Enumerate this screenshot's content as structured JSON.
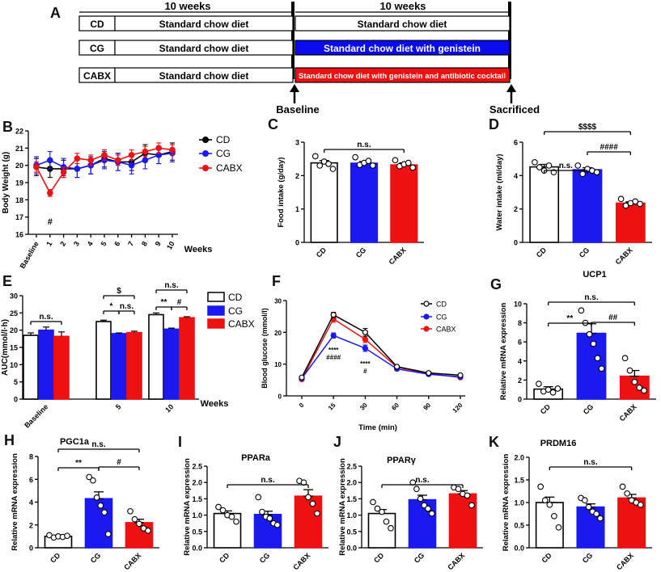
{
  "panel_a": {
    "label": "A",
    "period1": "10 weeks",
    "period2": "10 weeks",
    "groups": [
      {
        "name": "CD",
        "diet1": "Standard chow diet",
        "diet2": "Standard chow diet",
        "color": "#ffffff",
        "text_color": "#000000"
      },
      {
        "name": "CG",
        "diet1": "Standard chow diet",
        "diet2": "Standard chow diet with genistein",
        "color": "#0a0aee",
        "text_color": "#ffffff"
      },
      {
        "name": "CABX",
        "diet1": "Standard chow diet",
        "diet2": "Standard chow diet with genistein and antibiotic cocktail",
        "color": "#ee1111",
        "text_color": "#ffffff"
      }
    ],
    "baseline": "Baseline",
    "sacrificed": "Sacrificed"
  },
  "colors": {
    "CD": "#000000",
    "CG": "#1a1aee",
    "CABX": "#ee1111"
  },
  "chart_data": [
    {
      "id": "B",
      "type": "line",
      "panel_label": "B",
      "ylabel": "Body Weight (g)",
      "xlabel": "Weeks",
      "ylim": [
        16,
        22
      ],
      "yticks": [
        "16",
        "17",
        "18",
        "19",
        "20",
        "21",
        "22"
      ],
      "categories": [
        "Baseline",
        "1",
        "2",
        "3",
        "4",
        "5",
        "6",
        "7",
        "8",
        "9",
        "10"
      ],
      "series": [
        {
          "name": "CD",
          "values": [
            19.9,
            19.8,
            19.8,
            19.8,
            20.0,
            20.4,
            20.2,
            20.2,
            20.7,
            20.6,
            20.8
          ],
          "errors": [
            0.5,
            0.5,
            0.5,
            0.5,
            0.5,
            0.5,
            0.5,
            0.5,
            0.5,
            0.5,
            0.5
          ]
        },
        {
          "name": "CG",
          "values": [
            20.0,
            20.3,
            19.9,
            19.8,
            20.0,
            20.3,
            20.2,
            20.0,
            20.3,
            20.6,
            20.7
          ],
          "errors": [
            0.5,
            0.5,
            0.5,
            0.5,
            0.5,
            0.5,
            0.5,
            0.5,
            0.5,
            0.5,
            0.5
          ]
        },
        {
          "name": "CABX",
          "values": [
            19.9,
            18.4,
            19.6,
            20.4,
            20.3,
            20.6,
            20.3,
            20.6,
            20.8,
            21.0,
            20.9
          ],
          "errors": [
            0.3,
            0.2,
            0.3,
            0.3,
            0.3,
            0.3,
            0.3,
            0.3,
            0.3,
            0.3,
            0.3
          ]
        }
      ],
      "annotations": [
        "#"
      ],
      "legend": [
        "CD",
        "CG",
        "CABX"
      ]
    },
    {
      "id": "C",
      "type": "bar",
      "panel_label": "C",
      "ylabel": "Food intake (g/day)",
      "ylim": [
        0,
        3
      ],
      "yticks": [
        "0",
        "1",
        "2",
        "3"
      ],
      "categories": [
        "CD",
        "CG",
        "CABX"
      ],
      "values": [
        2.38,
        2.37,
        2.32
      ],
      "errors": [
        0.07,
        0.05,
        0.06
      ],
      "points": [
        [
          2.58,
          2.3,
          2.42,
          2.35,
          2.2
        ],
        [
          2.55,
          2.32,
          2.38,
          2.44,
          2.3
        ],
        [
          2.46,
          2.28,
          2.34,
          2.38,
          2.24
        ]
      ],
      "brackets": [
        {
          "from": 0,
          "to": 2,
          "label": "n.s."
        }
      ]
    },
    {
      "id": "D",
      "type": "bar",
      "panel_label": "D",
      "ylabel": "Water intake (ml/day)",
      "ylim": [
        0,
        6
      ],
      "yticks": [
        "0",
        "2",
        "4",
        "6"
      ],
      "categories": [
        "CD",
        "CG",
        "CABX"
      ],
      "values": [
        4.52,
        4.35,
        2.35
      ],
      "errors": [
        0.15,
        0.12,
        0.08
      ],
      "points": [
        [
          4.8,
          4.5,
          4.3,
          4.6,
          4.2
        ],
        [
          4.6,
          4.1,
          4.4,
          4.3,
          4.2
        ],
        [
          2.6,
          2.2,
          2.35,
          2.45,
          2.3
        ]
      ],
      "brackets": [
        {
          "from": 0,
          "to": 1,
          "label": "n.s."
        },
        {
          "from": 1,
          "to": 2,
          "label": "####"
        },
        {
          "from": 0,
          "to": 2,
          "label": "$$$$"
        }
      ]
    },
    {
      "id": "E",
      "type": "bar",
      "panel_label": "E",
      "ylabel": "AUC(mmol/l·h)",
      "xlabel": "Weeks",
      "ylim": [
        0,
        30
      ],
      "yticks": [
        "0",
        "5",
        "10",
        "15",
        "20",
        "25",
        "30"
      ],
      "categories": [
        "Baseline",
        "5",
        "10"
      ],
      "series": [
        {
          "name": "CD",
          "values": [
            18.5,
            22.5,
            24.5
          ],
          "errors": [
            0.7,
            0.4,
            0.5
          ]
        },
        {
          "name": "CG",
          "values": [
            20.0,
            19.0,
            20.3
          ],
          "errors": [
            0.9,
            0.2,
            0.3
          ]
        },
        {
          "name": "CABX",
          "values": [
            18.2,
            19.3,
            23.6
          ],
          "errors": [
            1.3,
            0.4,
            0.3
          ]
        }
      ],
      "brackets": [
        {
          "group": 0,
          "from": 0,
          "to": 2,
          "label": "n.s."
        },
        {
          "group": 1,
          "from": 0,
          "to": 1,
          "label": "*"
        },
        {
          "group": 1,
          "from": 1,
          "to": 2,
          "label": "n.s."
        },
        {
          "group": 1,
          "from": 0,
          "to": 2,
          "label": "$"
        },
        {
          "group": 2,
          "from": 0,
          "to": 1,
          "label": "**"
        },
        {
          "group": 2,
          "from": 1,
          "to": 2,
          "label": "#"
        },
        {
          "group": 2,
          "from": 0,
          "to": 2,
          "label": "n.s."
        }
      ],
      "legend": [
        "CD",
        "CG",
        "CABX"
      ]
    },
    {
      "id": "F",
      "type": "line",
      "panel_label": "F",
      "ylabel": "Blood glucose (mmol/l)",
      "xlabel": "Time (min)",
      "ylim": [
        0,
        30
      ],
      "yticks": [
        "0",
        "10",
        "20",
        "30"
      ],
      "categories": [
        "0",
        "15",
        "30",
        "60",
        "90",
        "120"
      ],
      "series": [
        {
          "name": "CD",
          "values": [
            5.8,
            25.5,
            20.0,
            9.2,
            7.2,
            6.5
          ],
          "errors": [
            0.3,
            0.8,
            1.2,
            0.4,
            0.3,
            0.3
          ]
        },
        {
          "name": "CG",
          "values": [
            5.5,
            19.0,
            15.0,
            8.5,
            6.8,
            6.0
          ],
          "errors": [
            0.3,
            0.8,
            1.0,
            0.4,
            0.3,
            0.3
          ]
        },
        {
          "name": "CABX",
          "values": [
            5.2,
            24.2,
            17.8,
            9.0,
            7.0,
            5.8
          ],
          "errors": [
            0.3,
            1.0,
            1.0,
            0.4,
            0.3,
            0.3
          ]
        }
      ],
      "annotations": [
        "****",
        "####",
        "****",
        "#"
      ],
      "legend": [
        "CD",
        "CG",
        "CABX"
      ]
    },
    {
      "id": "G",
      "type": "bar",
      "panel_label": "G",
      "title": "UCP1",
      "ylabel": "Relative mRNA expression",
      "ylim": [
        0,
        10
      ],
      "yticks": [
        "0",
        "2",
        "4",
        "6",
        "8",
        "10"
      ],
      "categories": [
        "CD",
        "CG",
        "CABX"
      ],
      "values": [
        1.05,
        6.9,
        2.4
      ],
      "errors": [
        0.25,
        1.0,
        0.6
      ],
      "points": [
        [
          1.6,
          0.8,
          1.0,
          0.7,
          1.1
        ],
        [
          9.3,
          8.0,
          6.8,
          5.8,
          4.3,
          3.2
        ],
        [
          4.3,
          3.0,
          1.8,
          1.2,
          0.9
        ]
      ],
      "brackets": [
        {
          "from": 0,
          "to": 1,
          "label": "**"
        },
        {
          "from": 1,
          "to": 2,
          "label": "##"
        },
        {
          "from": 0,
          "to": 2,
          "label": "n.s."
        }
      ]
    },
    {
      "id": "H",
      "type": "bar",
      "panel_label": "H",
      "title": "PGC1a",
      "ylabel": "Relative mRNA expression",
      "ylim": [
        0,
        8
      ],
      "yticks": [
        "0",
        "2",
        "4",
        "6",
        "8"
      ],
      "categories": [
        "CD",
        "CG",
        "CABX"
      ],
      "values": [
        1.0,
        4.3,
        2.2
      ],
      "errors": [
        0.1,
        0.6,
        0.3
      ],
      "points": [
        [
          1.1,
          0.9,
          1.0,
          0.95,
          1.05
        ],
        [
          6.2,
          5.9,
          4.4,
          3.7,
          3.1,
          1.2
        ],
        [
          3.2,
          2.5,
          2.1,
          1.7,
          1.5
        ]
      ],
      "brackets": [
        {
          "from": 0,
          "to": 1,
          "label": "**"
        },
        {
          "from": 1,
          "to": 2,
          "label": "#"
        },
        {
          "from": 0,
          "to": 2,
          "label": "n.s."
        }
      ]
    },
    {
      "id": "I",
      "type": "bar",
      "panel_label": "I",
      "title": "PPARa",
      "ylabel": "Relative mRNA expression",
      "ylim": [
        0,
        2.5
      ],
      "yticks": [
        "0.0",
        "0.5",
        "1.0",
        "1.5",
        "2.0",
        "2.5"
      ],
      "categories": [
        "CD",
        "CG",
        "CABX"
      ],
      "values": [
        1.05,
        1.02,
        1.58
      ],
      "errors": [
        0.08,
        0.1,
        0.2
      ],
      "points": [
        [
          1.25,
          1.15,
          1.0,
          0.95,
          0.8
        ],
        [
          1.55,
          1.1,
          0.95,
          0.9,
          0.75,
          0.7
        ],
        [
          2.05,
          2.0,
          1.55,
          1.35,
          1.05
        ]
      ],
      "brackets": [
        {
          "from": 0,
          "to": 2,
          "label": "n.s."
        }
      ]
    },
    {
      "id": "J",
      "type": "bar",
      "panel_label": "J",
      "title": "PPARγ",
      "ylabel": "Relative mRNA expression",
      "ylim": [
        0,
        2.5
      ],
      "yticks": [
        "0.0",
        "0.5",
        "1.0",
        "1.5",
        "2.0",
        "2.5"
      ],
      "categories": [
        "CD",
        "CG",
        "CABX"
      ],
      "values": [
        1.05,
        1.47,
        1.65
      ],
      "errors": [
        0.12,
        0.14,
        0.1
      ],
      "points": [
        [
          1.4,
          1.2,
          1.1,
          0.8,
          0.6
        ],
        [
          2.0,
          1.8,
          1.5,
          1.3,
          1.2,
          1.05
        ],
        [
          1.85,
          1.8,
          1.65,
          1.6,
          1.3
        ]
      ],
      "brackets": [
        {
          "from": 0,
          "to": 2,
          "label": "n.s."
        }
      ]
    },
    {
      "id": "K",
      "type": "bar",
      "panel_label": "K",
      "title": "PRDM16",
      "ylabel": "Relative mRNA expression",
      "ylim": [
        0,
        2.0
      ],
      "yticks": [
        "0.0",
        "0.5",
        "1.0",
        "1.5",
        "2.0"
      ],
      "categories": [
        "CD",
        "CG",
        "CABX"
      ],
      "values": [
        1.0,
        0.9,
        1.1
      ],
      "errors": [
        0.12,
        0.07,
        0.08
      ],
      "points": [
        [
          1.35,
          1.05,
          0.95,
          0.7,
          0.45
        ],
        [
          1.1,
          1.05,
          0.9,
          0.8,
          0.75,
          0.65
        ],
        [
          1.35,
          1.2,
          1.05,
          1.0,
          0.95
        ]
      ],
      "brackets": [
        {
          "from": 0,
          "to": 2,
          "label": "n.s."
        }
      ]
    }
  ]
}
